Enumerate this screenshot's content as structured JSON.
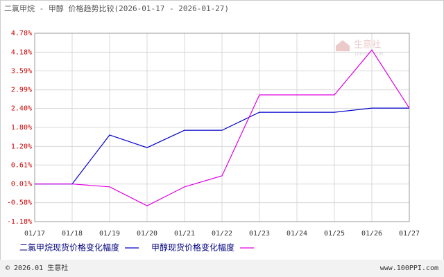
{
  "chart_data": {
    "type": "line",
    "title": "二氯甲烷 - 甲醇 价格趋势比较(2026-01-17 - 2026-01-27)",
    "categories": [
      "01/17",
      "01/18",
      "01/19",
      "01/20",
      "01/21",
      "01/22",
      "01/23",
      "01/24",
      "01/25",
      "01/26",
      "01/27"
    ],
    "series": [
      {
        "name": "二氯甲烷现货价格变化幅度",
        "color": "#0000cc",
        "values": [
          0.01,
          0.01,
          1.56,
          1.16,
          1.71,
          1.71,
          2.28,
          2.28,
          2.28,
          2.41,
          2.41
        ]
      },
      {
        "name": "甲醇现货价格变化幅度",
        "color": "#e000e0",
        "values": [
          0.01,
          0.01,
          -0.08,
          -0.68,
          -0.08,
          0.27,
          2.83,
          2.83,
          2.83,
          4.25,
          2.41
        ]
      }
    ],
    "ylim": [
      -1.18,
      4.78
    ],
    "yticks": [
      {
        "value": 4.78,
        "label": "4.78%"
      },
      {
        "value": 4.18,
        "label": "4.18%"
      },
      {
        "value": 3.59,
        "label": "3.59%"
      },
      {
        "value": 2.99,
        "label": "2.99%"
      },
      {
        "value": 2.4,
        "label": "2.40%"
      },
      {
        "value": 1.8,
        "label": "1.80%"
      },
      {
        "value": 1.2,
        "label": "1.20%"
      },
      {
        "value": 0.61,
        "label": "0.61%"
      },
      {
        "value": 0.01,
        "label": "0.01%"
      },
      {
        "value": -0.58,
        "label": "-0.58%"
      },
      {
        "value": -1.18,
        "label": "-1.18%"
      }
    ],
    "grid": true
  },
  "watermark": {
    "name": "生意社",
    "url": "100PPI.COM"
  },
  "footer": {
    "copyright": "© 2026.01 生意社",
    "site": "www.100PPI.com"
  }
}
